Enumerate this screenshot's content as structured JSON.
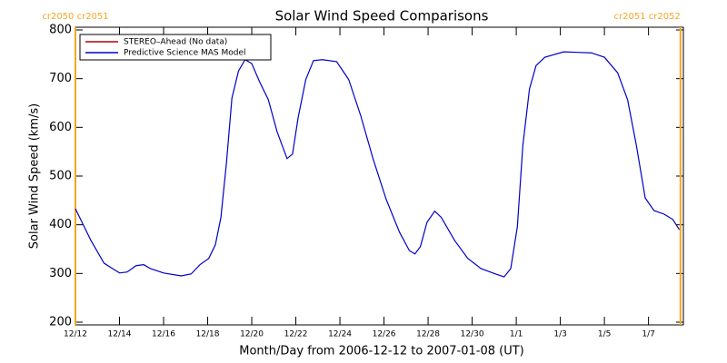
{
  "chart_data": {
    "type": "line",
    "title": "Solar Wind Speed Comparisons",
    "xlabel": "Month/Day from 2006-12-12 to 2007-01-08 (UT)",
    "ylabel": "Solar Wind Speed (km/s)",
    "xlim": [
      0,
      27.5
    ],
    "xticks": [
      {
        "value": 0,
        "label": "12/12"
      },
      {
        "value": 2,
        "label": "12/14"
      },
      {
        "value": 4,
        "label": "12/16"
      },
      {
        "value": 6,
        "label": "12/18"
      },
      {
        "value": 8,
        "label": "12/20"
      },
      {
        "value": 10,
        "label": "12/22"
      },
      {
        "value": 12,
        "label": "12/24"
      },
      {
        "value": 14,
        "label": "12/26"
      },
      {
        "value": 16,
        "label": "12/28"
      },
      {
        "value": 18,
        "label": "12/30"
      },
      {
        "value": 20,
        "label": "1/1"
      },
      {
        "value": 22,
        "label": "1/3"
      },
      {
        "value": 24,
        "label": "1/5"
      },
      {
        "value": 26,
        "label": "1/7"
      }
    ],
    "ylim": [
      200,
      800
    ],
    "yticks": [
      200,
      300,
      400,
      500,
      600,
      700,
      800
    ],
    "legend": "upper left",
    "annotations": [
      {
        "x": 0,
        "label": "cr2050 cr2051",
        "color": "#f5a623"
      },
      {
        "x": 27.45,
        "label": "cr2051 cr2052",
        "color": "#f5a623"
      }
    ],
    "x": [
      0,
      0.7,
      1.3,
      2,
      2.35,
      2.75,
      3.1,
      3.4,
      4,
      4.8,
      5.25,
      5.65,
      6.05,
      6.35,
      6.6,
      6.85,
      7.1,
      7.4,
      7.7,
      8,
      8.35,
      8.75,
      9.15,
      9.6,
      9.85,
      10.1,
      10.45,
      10.8,
      11.2,
      11.85,
      12.4,
      12.95,
      13.5,
      14.1,
      14.7,
      15.15,
      15.4,
      15.65,
      15.95,
      16.3,
      16.6,
      17.2,
      17.8,
      18.4,
      19.05,
      19.45,
      19.75,
      20.05,
      20.3,
      20.6,
      20.9,
      21.3,
      22.15,
      23.4,
      24,
      24.6,
      25.05,
      25.45,
      25.85,
      26.25,
      26.7,
      27.1,
      27.4
    ],
    "series": [
      {
        "name": "STEREO–Ahead (No data)",
        "color": "#b00000",
        "values": [
          null,
          null,
          null,
          null,
          null,
          null,
          null,
          null,
          null,
          null,
          null,
          null,
          null,
          null,
          null,
          null,
          null,
          null,
          null,
          null,
          null,
          null,
          null,
          null,
          null,
          null,
          null,
          null,
          null,
          null,
          null,
          null,
          null,
          null,
          null,
          null,
          null,
          null,
          null,
          null,
          null,
          null,
          null,
          null,
          null,
          null,
          null,
          null,
          null,
          null,
          null,
          null,
          null,
          null,
          null,
          null,
          null,
          null,
          null,
          null,
          null,
          null,
          null
        ]
      },
      {
        "name": "Predictive Science MAS Model",
        "color": "#0000c8",
        "values": [
          433,
          368,
          321,
          301,
          303,
          316,
          318,
          310,
          301,
          295,
          299,
          318,
          331,
          359,
          415,
          526,
          660,
          716,
          739,
          731,
          694,
          657,
          591,
          536,
          545,
          619,
          698,
          737,
          739,
          735,
          698,
          623,
          536,
          452,
          385,
          347,
          340,
          355,
          405,
          428,
          415,
          368,
          331,
          310,
          299,
          293,
          310,
          396,
          563,
          679,
          727,
          744,
          755,
          753,
          744,
          712,
          657,
          563,
          455,
          429,
          422,
          411,
          390
        ]
      }
    ]
  }
}
